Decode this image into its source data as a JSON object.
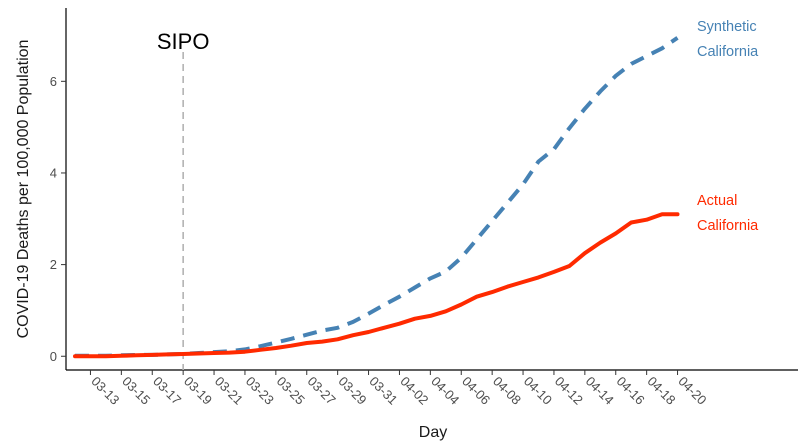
{
  "chart_data": {
    "type": "line",
    "xlabel": "Day",
    "ylabel": "COVID-19 Deaths per 100,000 Population",
    "ylim": [
      -0.3,
      7.6
    ],
    "yticks": [
      0,
      2,
      4,
      6
    ],
    "x_tick_labels": [
      "03-13",
      "03-15",
      "03-17",
      "03-19",
      "03-21",
      "03-23",
      "03-25",
      "03-27",
      "03-29",
      "03-31",
      "04-02",
      "04-04",
      "04-06",
      "04-08",
      "04-10",
      "04-12",
      "04-14",
      "04-16",
      "04-18",
      "04-20"
    ],
    "grid": false,
    "annotations": [
      {
        "text": "SIPO",
        "x": "03-19",
        "style": "vertical dashed line"
      }
    ],
    "series": [
      {
        "name": "Synthetic California",
        "label_lines": [
          "Synthetic",
          "California"
        ],
        "color": "#4682b4",
        "dash": "dashed",
        "x": [
          "03-12",
          "03-13",
          "03-14",
          "03-15",
          "03-16",
          "03-17",
          "03-18",
          "03-19",
          "03-20",
          "03-21",
          "03-22",
          "03-23",
          "03-24",
          "03-25",
          "03-26",
          "03-27",
          "03-28",
          "03-29",
          "03-30",
          "03-31",
          "04-01",
          "04-02",
          "04-03",
          "04-04",
          "04-05",
          "04-06",
          "04-07",
          "04-08",
          "04-09",
          "04-10",
          "04-11",
          "04-12",
          "04-13",
          "04-14",
          "04-15",
          "04-16",
          "04-17",
          "04-18",
          "04-19",
          "04-20"
        ],
        "values": [
          0.01,
          0.01,
          0.01,
          0.02,
          0.03,
          0.03,
          0.04,
          0.05,
          0.07,
          0.09,
          0.11,
          0.15,
          0.22,
          0.3,
          0.38,
          0.47,
          0.56,
          0.62,
          0.75,
          0.93,
          1.12,
          1.3,
          1.5,
          1.7,
          1.85,
          2.15,
          2.55,
          2.95,
          3.35,
          3.75,
          4.25,
          4.52,
          4.98,
          5.4,
          5.78,
          6.12,
          6.38,
          6.55,
          6.72,
          6.95
        ]
      },
      {
        "name": "Actual California",
        "label_lines": [
          "Actual",
          "California"
        ],
        "color": "#ff2a00",
        "dash": "solid",
        "x": [
          "03-12",
          "03-13",
          "03-14",
          "03-15",
          "03-16",
          "03-17",
          "03-18",
          "03-19",
          "03-20",
          "03-21",
          "03-22",
          "03-23",
          "03-24",
          "03-25",
          "03-26",
          "03-27",
          "03-28",
          "03-29",
          "03-30",
          "03-31",
          "04-01",
          "04-02",
          "04-03",
          "04-04",
          "04-05",
          "04-06",
          "04-07",
          "04-08",
          "04-09",
          "04-10",
          "04-11",
          "04-12",
          "04-13",
          "04-14",
          "04-15",
          "04-16",
          "04-17",
          "04-18",
          "04-19",
          "04-20"
        ],
        "values": [
          0.0,
          0.0,
          0.0,
          0.01,
          0.02,
          0.03,
          0.04,
          0.05,
          0.06,
          0.07,
          0.08,
          0.1,
          0.14,
          0.18,
          0.23,
          0.29,
          0.32,
          0.37,
          0.46,
          0.53,
          0.62,
          0.71,
          0.82,
          0.88,
          0.98,
          1.13,
          1.3,
          1.4,
          1.52,
          1.62,
          1.72,
          1.84,
          1.97,
          2.25,
          2.48,
          2.68,
          2.92,
          2.98,
          3.1,
          3.1
        ]
      }
    ]
  }
}
